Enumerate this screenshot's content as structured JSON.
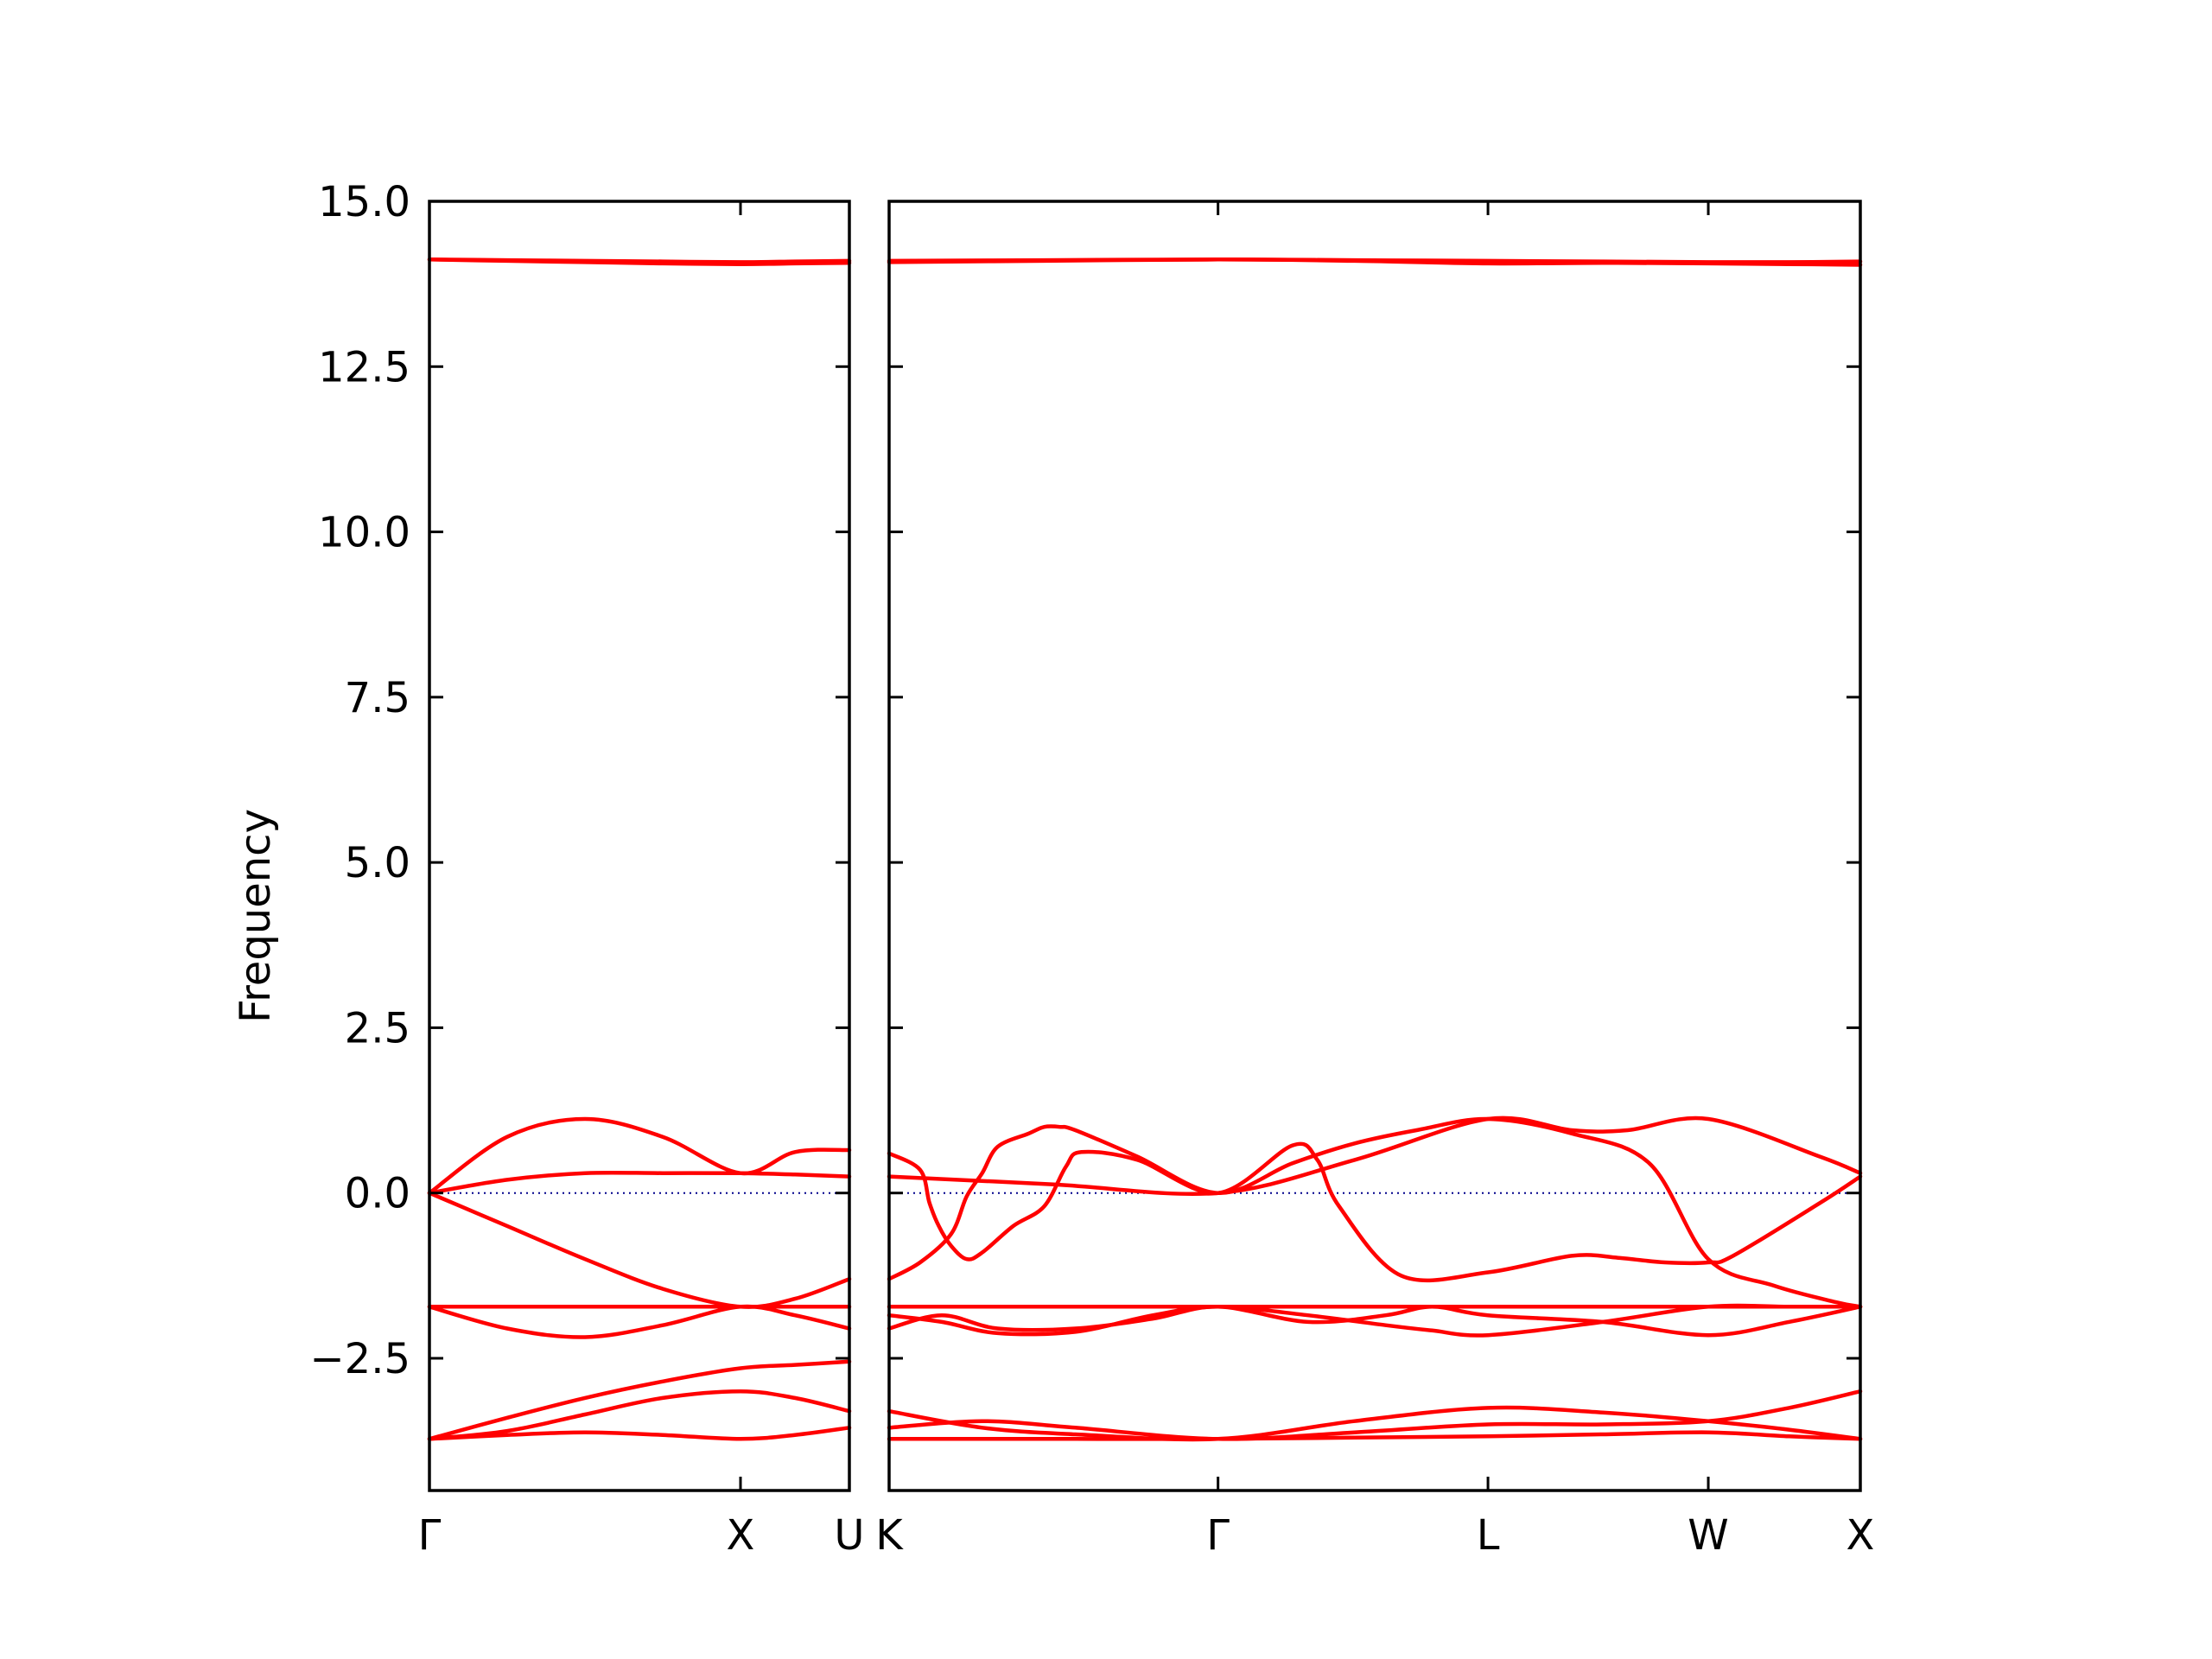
{
  "chart_data": {
    "type": "line",
    "title": "",
    "ylabel": "Frequency",
    "ylim": [
      -4.5,
      15.0
    ],
    "yticks": [
      {
        "value": -2.5,
        "label": "−2.5"
      },
      {
        "value": 0.0,
        "label": "0.0"
      },
      {
        "value": 2.5,
        "label": "2.5"
      },
      {
        "value": 5.0,
        "label": "5.0"
      },
      {
        "value": 7.5,
        "label": "7.5"
      },
      {
        "value": 10.0,
        "label": "10.0"
      },
      {
        "value": 12.5,
        "label": "12.5"
      },
      {
        "value": 15.0,
        "label": "15.0"
      }
    ],
    "band_color": "#ff0000",
    "zero_line_color": "#00008b",
    "grid": false,
    "legend": "none",
    "panels": [
      {
        "name": "panel-left",
        "xlim": [
          0,
          1.35
        ],
        "xticks": [
          {
            "value": 0.0,
            "label": "Γ"
          },
          {
            "value": 1.0,
            "label": "X"
          },
          {
            "value": 1.35,
            "label": "U"
          }
        ],
        "bands": [
          {
            "x": [
              0,
              0.25,
              0.5,
              0.75,
              1.0,
              1.175,
              1.35
            ],
            "y": [
              -3.72,
              -3.66,
              -3.62,
              -3.66,
              -3.72,
              -3.66,
              -3.55
            ]
          },
          {
            "x": [
              0,
              0.25,
              0.5,
              0.75,
              1.0,
              1.175,
              1.35
            ],
            "y": [
              -3.72,
              -3.6,
              -3.35,
              -3.1,
              -3.0,
              -3.1,
              -3.3
            ]
          },
          {
            "x": [
              0,
              0.25,
              0.5,
              0.75,
              1.0,
              1.175,
              1.35
            ],
            "y": [
              -3.72,
              -3.4,
              -3.1,
              -2.85,
              -2.65,
              -2.6,
              -2.55
            ]
          },
          {
            "x": [
              0,
              0.25,
              0.5,
              0.75,
              1.0,
              1.175,
              1.35
            ],
            "y": [
              -1.72,
              -1.72,
              -1.72,
              -1.72,
              -1.72,
              -1.72,
              -1.72
            ]
          },
          {
            "x": [
              0,
              0.25,
              0.5,
              0.75,
              1.0,
              1.175,
              1.35
            ],
            "y": [
              -1.72,
              -2.05,
              -2.18,
              -2.0,
              -1.72,
              -1.85,
              -2.05
            ]
          },
          {
            "x": [
              0,
              0.25,
              0.5,
              0.75,
              1.0,
              1.175,
              1.35
            ],
            "y": [
              0.0,
              -0.5,
              -1.0,
              -1.45,
              -1.72,
              -1.6,
              -1.3
            ]
          },
          {
            "x": [
              0,
              0.25,
              0.5,
              0.75,
              1.0,
              1.175,
              1.35
            ],
            "y": [
              0.0,
              0.85,
              1.12,
              0.85,
              0.3,
              0.62,
              0.65
            ]
          },
          {
            "x": [
              0,
              0.25,
              0.5,
              0.75,
              1.0,
              1.175,
              1.35
            ],
            "y": [
              0.0,
              0.2,
              0.3,
              0.3,
              0.3,
              0.28,
              0.25
            ]
          },
          {
            "x": [
              0,
              0.25,
              0.5,
              0.75,
              1.0,
              1.175,
              1.35
            ],
            "y": [
              14.12,
              14.11,
              14.1,
              14.09,
              14.08,
              14.09,
              14.1
            ]
          },
          {
            "x": [
              0,
              0.25,
              0.5,
              0.75,
              1.0,
              1.175,
              1.35
            ],
            "y": [
              14.12,
              14.1,
              14.08,
              14.06,
              14.05,
              14.06,
              14.07
            ]
          }
        ]
      },
      {
        "name": "panel-right",
        "xlim": [
          0,
          3.13
        ],
        "xticks": [
          {
            "value": 0.0,
            "label": "K"
          },
          {
            "value": 1.06,
            "label": "Γ"
          },
          {
            "value": 1.93,
            "label": "L"
          },
          {
            "value": 2.64,
            "label": "W"
          },
          {
            "value": 3.13,
            "label": "X"
          }
        ],
        "bands": [
          {
            "x": [
              0,
              0.3,
              0.6,
              1.06,
              1.5,
              1.93,
              2.3,
              2.64,
              2.9,
              3.13
            ],
            "y": [
              -3.72,
              -3.72,
              -3.72,
              -3.72,
              -3.7,
              -3.68,
              -3.65,
              -3.62,
              -3.68,
              -3.72
            ]
          },
          {
            "x": [
              0,
              0.3,
              0.6,
              1.06,
              1.5,
              1.93,
              2.3,
              2.64,
              2.9,
              3.13
            ],
            "y": [
              -3.55,
              -3.45,
              -3.55,
              -3.72,
              -3.62,
              -3.5,
              -3.5,
              -3.45,
              -3.25,
              -3.0
            ]
          },
          {
            "x": [
              0,
              0.3,
              0.6,
              1.06,
              1.5,
              1.93,
              2.3,
              2.64,
              2.9,
              3.13
            ],
            "y": [
              -3.3,
              -3.55,
              -3.65,
              -3.72,
              -3.45,
              -3.25,
              -3.32,
              -3.45,
              -3.58,
              -3.72
            ]
          },
          {
            "x": [
              0,
              0.17,
              0.35,
              0.6,
              0.85,
              1.06,
              1.35,
              1.6,
              1.75,
              1.93,
              2.3,
              2.64,
              2.9,
              3.13
            ],
            "y": [
              -2.05,
              -1.85,
              -2.05,
              -2.05,
              -1.9,
              -1.72,
              -1.95,
              -1.85,
              -1.72,
              -1.85,
              -1.95,
              -2.15,
              -1.95,
              -1.72
            ]
          },
          {
            "x": [
              0,
              0.17,
              0.35,
              0.6,
              0.85,
              1.06,
              1.35,
              1.6,
              1.75,
              1.93,
              2.3,
              2.64,
              2.9,
              3.13
            ],
            "y": [
              -1.85,
              -1.95,
              -2.12,
              -2.1,
              -1.85,
              -1.72,
              -1.85,
              -2.0,
              -2.08,
              -2.15,
              -1.95,
              -1.72,
              -1.72,
              -1.72
            ]
          },
          {
            "x": [
              0,
              0.2,
              0.35,
              0.6,
              0.85,
              1.06,
              1.35,
              1.6,
              1.75,
              1.93,
              2.3,
              2.64,
              2.9,
              3.13
            ],
            "y": [
              -1.72,
              -1.72,
              -1.72,
              -1.72,
              -1.72,
              -1.72,
              -1.72,
              -1.72,
              -1.72,
              -1.72,
              -1.72,
              -1.72,
              -1.72,
              -1.72
            ]
          },
          {
            "x": [
              0,
              0.1,
              0.2,
              0.25,
              0.3,
              0.35,
              0.45,
              0.5,
              0.55,
              0.6,
              0.8,
              1.06,
              1.3,
              1.5,
              1.7,
              1.93,
              2.2,
              2.45,
              2.64,
              2.85,
              3.05,
              3.13
            ],
            "y": [
              -1.3,
              -1.05,
              -0.62,
              -0.05,
              0.3,
              0.7,
              0.9,
              1.0,
              1.0,
              0.95,
              0.55,
              0.0,
              0.45,
              0.75,
              0.95,
              1.12,
              0.9,
              0.45,
              -1.0,
              -1.4,
              -1.65,
              -1.72
            ]
          },
          {
            "x": [
              0,
              0.1,
              0.13,
              0.16,
              0.2,
              0.25,
              0.3,
              0.4,
              0.5,
              0.57,
              0.62,
              0.8,
              1.06,
              1.3,
              1.38,
              1.45,
              1.65,
              1.93,
              2.2,
              2.35,
              2.5,
              2.64,
              2.72,
              3.0,
              3.13
            ],
            "y": [
              0.6,
              0.35,
              -0.15,
              -0.5,
              -0.8,
              -1.0,
              -0.9,
              -0.5,
              -0.2,
              0.4,
              0.62,
              0.5,
              0.0,
              0.72,
              0.5,
              -0.2,
              -1.25,
              -1.2,
              -0.95,
              -0.98,
              -1.05,
              -1.05,
              -0.95,
              -0.15,
              0.25
            ]
          },
          {
            "x": [
              0,
              0.53,
              1.06,
              1.5,
              1.93,
              2.2,
              2.38,
              2.64,
              3.0,
              3.13
            ],
            "y": [
              0.25,
              0.13,
              0.0,
              0.5,
              1.12,
              0.95,
              0.95,
              1.12,
              0.55,
              0.3
            ]
          },
          {
            "x": [
              0,
              0.5,
              1.06,
              1.5,
              1.93,
              2.3,
              2.64,
              2.9,
              3.13
            ],
            "y": [
              14.1,
              14.11,
              14.12,
              14.11,
              14.1,
              14.09,
              14.08,
              14.08,
              14.09
            ]
          },
          {
            "x": [
              0,
              0.5,
              1.06,
              1.5,
              1.93,
              2.3,
              2.64,
              2.9,
              3.13
            ],
            "y": [
              14.08,
              14.1,
              14.12,
              14.1,
              14.06,
              14.07,
              14.06,
              14.05,
              14.04
            ]
          }
        ]
      }
    ]
  }
}
